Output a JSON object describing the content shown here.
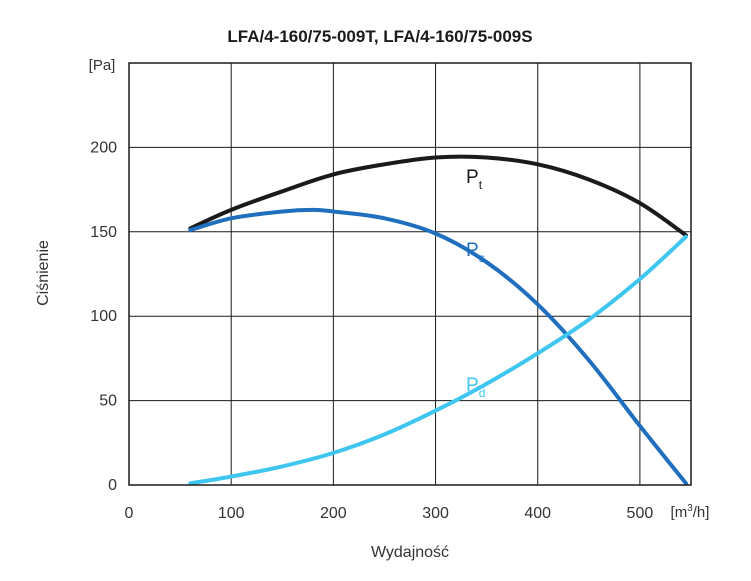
{
  "chart_data": {
    "type": "line",
    "title": "LFA/4-160/75-009T, LFA/4-160/75-009S",
    "xlabel": "Wydajność",
    "ylabel": "Ciśnienie",
    "x_unit": {
      "base": "[m",
      "sup": "3",
      "rest": "/h]"
    },
    "y_unit": "[Pa]",
    "xlim": [
      0,
      550
    ],
    "ylim": [
      0,
      250
    ],
    "xticks": [
      0,
      100,
      200,
      300,
      400,
      500
    ],
    "yticks": [
      0,
      50,
      100,
      150,
      200
    ],
    "grid": true,
    "series": [
      {
        "name": "Pt",
        "label_main": "P",
        "label_sub": "t",
        "color": "#1a1a1a",
        "x": [
          60,
          100,
          150,
          200,
          250,
          300,
          350,
          400,
          450,
          500,
          545
        ],
        "y": [
          152,
          163,
          174,
          184,
          190,
          194,
          194,
          190,
          181,
          167,
          148
        ]
      },
      {
        "name": "Ps",
        "label_main": "P",
        "label_sub": "s",
        "color": "#1f6fbe",
        "x": [
          60,
          100,
          150,
          180,
          200,
          250,
          300,
          350,
          400,
          450,
          500,
          545
        ],
        "y": [
          151,
          158,
          162,
          163,
          162,
          158,
          149,
          132,
          107,
          74,
          35,
          1
        ]
      },
      {
        "name": "Pd",
        "label_main": "P",
        "label_sub": "d",
        "color": "#3ec6f0",
        "x": [
          60,
          100,
          150,
          200,
          250,
          300,
          350,
          400,
          450,
          500,
          545
        ],
        "y": [
          1,
          5,
          11,
          19,
          30,
          44,
          60,
          78,
          98,
          122,
          147
        ]
      }
    ]
  }
}
